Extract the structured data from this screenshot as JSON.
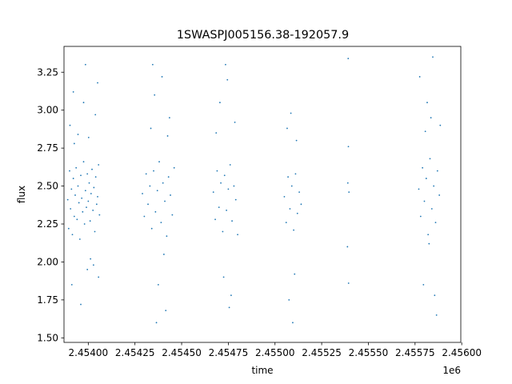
{
  "chart_data": {
    "type": "scatter",
    "title": "1SWASPJ005156.38-192057.9",
    "xlabel": "time",
    "ylabel": "flux",
    "x_offset_label": "1e6",
    "xlim": [
      2453870,
      2455995
    ],
    "ylim": [
      1.47,
      3.42
    ],
    "x_ticks": [
      2454000,
      2454250,
      2454500,
      2454750,
      2455000,
      2455250,
      2455500,
      2455750,
      2456000
    ],
    "x_tick_labels": [
      "2.45400",
      "2.45425",
      "2.45450",
      "2.45475",
      "2.45500",
      "2.45525",
      "2.45550",
      "2.45575",
      "2.45600"
    ],
    "y_ticks": [
      1.5,
      1.75,
      2.0,
      2.25,
      2.5,
      2.75,
      3.0,
      3.25
    ],
    "y_tick_labels": [
      "1.50",
      "1.75",
      "2.00",
      "2.25",
      "2.50",
      "2.75",
      "3.00",
      "3.25"
    ],
    "grid": false,
    "marker_color": "#1f77b4",
    "series": [
      {
        "points": [
          [
            2453890,
            2.41
          ],
          [
            2453895,
            2.22
          ],
          [
            2453900,
            2.6
          ],
          [
            2453905,
            2.35
          ],
          [
            2453910,
            2.48
          ],
          [
            2453915,
            2.18
          ],
          [
            2453920,
            2.55
          ],
          [
            2453925,
            2.3
          ],
          [
            2453930,
            2.44
          ],
          [
            2453935,
            2.62
          ],
          [
            2453940,
            2.28
          ],
          [
            2453945,
            2.5
          ],
          [
            2453950,
            2.39
          ],
          [
            2453955,
            2.15
          ],
          [
            2453960,
            2.57
          ],
          [
            2453965,
            2.42
          ],
          [
            2453970,
            2.33
          ],
          [
            2453975,
            2.66
          ],
          [
            2453980,
            2.25
          ],
          [
            2453985,
            2.47
          ],
          [
            2453990,
            2.36
          ],
          [
            2453995,
            2.58
          ],
          [
            2454000,
            2.4
          ],
          [
            2454005,
            2.52
          ],
          [
            2454010,
            2.27
          ],
          [
            2454015,
            2.45
          ],
          [
            2454020,
            2.61
          ],
          [
            2454025,
            2.34
          ],
          [
            2454030,
            2.49
          ],
          [
            2454035,
            2.2
          ],
          [
            2454040,
            2.56
          ],
          [
            2454045,
            2.38
          ],
          [
            2454050,
            2.43
          ],
          [
            2454055,
            2.64
          ],
          [
            2454060,
            2.31
          ],
          [
            2453902,
            2.9
          ],
          [
            2453920,
            3.12
          ],
          [
            2453945,
            2.84
          ],
          [
            2453975,
            3.05
          ],
          [
            2453995,
            1.95
          ],
          [
            2454012,
            2.02
          ],
          [
            2454038,
            2.97
          ],
          [
            2454050,
            3.18
          ],
          [
            2453912,
            1.85
          ],
          [
            2453960,
            1.72
          ],
          [
            2453985,
            3.3
          ],
          [
            2454028,
            1.98
          ],
          [
            2454055,
            1.9
          ],
          [
            2453925,
            2.78
          ],
          [
            2454002,
            2.82
          ],
          [
            2454290,
            2.45
          ],
          [
            2454300,
            2.3
          ],
          [
            2454310,
            2.58
          ],
          [
            2454320,
            2.38
          ],
          [
            2454330,
            2.5
          ],
          [
            2454340,
            2.22
          ],
          [
            2454350,
            2.6
          ],
          [
            2454360,
            2.33
          ],
          [
            2454370,
            2.47
          ],
          [
            2454380,
            2.66
          ],
          [
            2454390,
            2.26
          ],
          [
            2454400,
            2.52
          ],
          [
            2454410,
            2.4
          ],
          [
            2454420,
            2.17
          ],
          [
            2454430,
            2.56
          ],
          [
            2454440,
            2.44
          ],
          [
            2454450,
            2.31
          ],
          [
            2454460,
            2.62
          ],
          [
            2454335,
            2.88
          ],
          [
            2454355,
            3.1
          ],
          [
            2454375,
            1.85
          ],
          [
            2454395,
            3.22
          ],
          [
            2454415,
            1.68
          ],
          [
            2454435,
            2.95
          ],
          [
            2454365,
            1.6
          ],
          [
            2454345,
            3.3
          ],
          [
            2454405,
            2.05
          ],
          [
            2454425,
            2.83
          ],
          [
            2454670,
            2.46
          ],
          [
            2454680,
            2.28
          ],
          [
            2454690,
            2.6
          ],
          [
            2454700,
            2.36
          ],
          [
            2454710,
            2.52
          ],
          [
            2454720,
            2.2
          ],
          [
            2454730,
            2.57
          ],
          [
            2454740,
            2.34
          ],
          [
            2454750,
            2.48
          ],
          [
            2454760,
            2.64
          ],
          [
            2454770,
            2.27
          ],
          [
            2454780,
            2.5
          ],
          [
            2454790,
            2.41
          ],
          [
            2454800,
            2.18
          ],
          [
            2454685,
            2.85
          ],
          [
            2454705,
            3.05
          ],
          [
            2454725,
            1.9
          ],
          [
            2454745,
            3.2
          ],
          [
            2454765,
            1.78
          ],
          [
            2454785,
            2.92
          ],
          [
            2454735,
            3.3
          ],
          [
            2454755,
            1.7
          ],
          [
            2455050,
            2.43
          ],
          [
            2455060,
            2.26
          ],
          [
            2455070,
            2.56
          ],
          [
            2455080,
            2.35
          ],
          [
            2455090,
            2.5
          ],
          [
            2455100,
            2.21
          ],
          [
            2455110,
            2.58
          ],
          [
            2455120,
            2.32
          ],
          [
            2455130,
            2.46
          ],
          [
            2455140,
            2.38
          ],
          [
            2455065,
            2.88
          ],
          [
            2455085,
            2.98
          ],
          [
            2455105,
            1.92
          ],
          [
            2455075,
            1.75
          ],
          [
            2455115,
            2.8
          ],
          [
            2455095,
            1.6
          ],
          [
            2455390,
            2.52
          ],
          [
            2455392,
            3.34
          ],
          [
            2455394,
            1.86
          ],
          [
            2455396,
            2.46
          ],
          [
            2455388,
            2.1
          ],
          [
            2455393,
            2.76
          ],
          [
            2455770,
            2.48
          ],
          [
            2455780,
            2.3
          ],
          [
            2455790,
            2.62
          ],
          [
            2455800,
            2.4
          ],
          [
            2455810,
            2.55
          ],
          [
            2455820,
            2.18
          ],
          [
            2455830,
            2.68
          ],
          [
            2455840,
            2.35
          ],
          [
            2455850,
            2.5
          ],
          [
            2455860,
            2.26
          ],
          [
            2455870,
            2.6
          ],
          [
            2455880,
            2.44
          ],
          [
            2455775,
            3.22
          ],
          [
            2455795,
            1.85
          ],
          [
            2455815,
            3.05
          ],
          [
            2455835,
            2.95
          ],
          [
            2455855,
            1.78
          ],
          [
            2455845,
            3.35
          ],
          [
            2455865,
            1.65
          ],
          [
            2455885,
            2.9
          ],
          [
            2455825,
            2.12
          ],
          [
            2455805,
            2.86
          ]
        ]
      }
    ]
  }
}
